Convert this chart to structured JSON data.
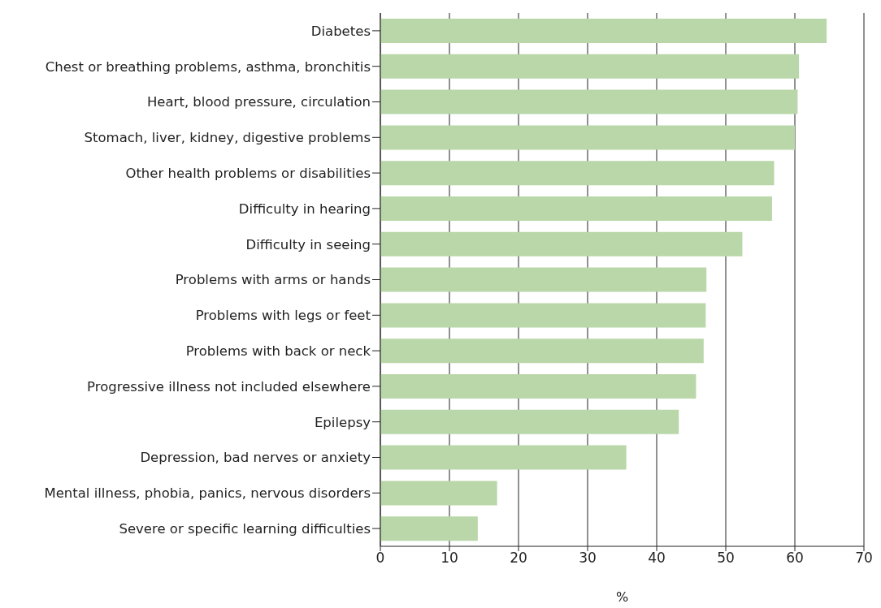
{
  "chart_data": {
    "type": "bar",
    "orientation": "horizontal",
    "xlabel": "%",
    "categories": [
      "Diabetes",
      "Chest or breathing problems, asthma, bronchitis",
      "Heart, blood pressure, circulation",
      "Stomach, liver, kidney, digestive problems",
      "Other health problems or disabilities",
      "Difficulty in hearing",
      "Difficulty in seeing",
      "Problems with arms or hands",
      "Problems with legs or feet",
      "Problems with back or neck",
      "Progressive illness not included elsewhere",
      "Epilepsy",
      "Depression, bad nerves or anxiety",
      "Mental illness, phobia, panics, nervous disorders",
      "Severe or specific learning difficulties"
    ],
    "values": [
      64.6,
      60.6,
      60.4,
      60.0,
      57.0,
      56.7,
      52.4,
      47.2,
      47.1,
      46.8,
      45.7,
      43.2,
      35.6,
      16.9,
      14.1
    ],
    "color": "#b9d7a8",
    "xlim": [
      0,
      70
    ],
    "xticks": [
      0,
      10,
      20,
      30,
      40,
      50,
      60,
      70
    ],
    "grid": "x",
    "legend": false
  }
}
